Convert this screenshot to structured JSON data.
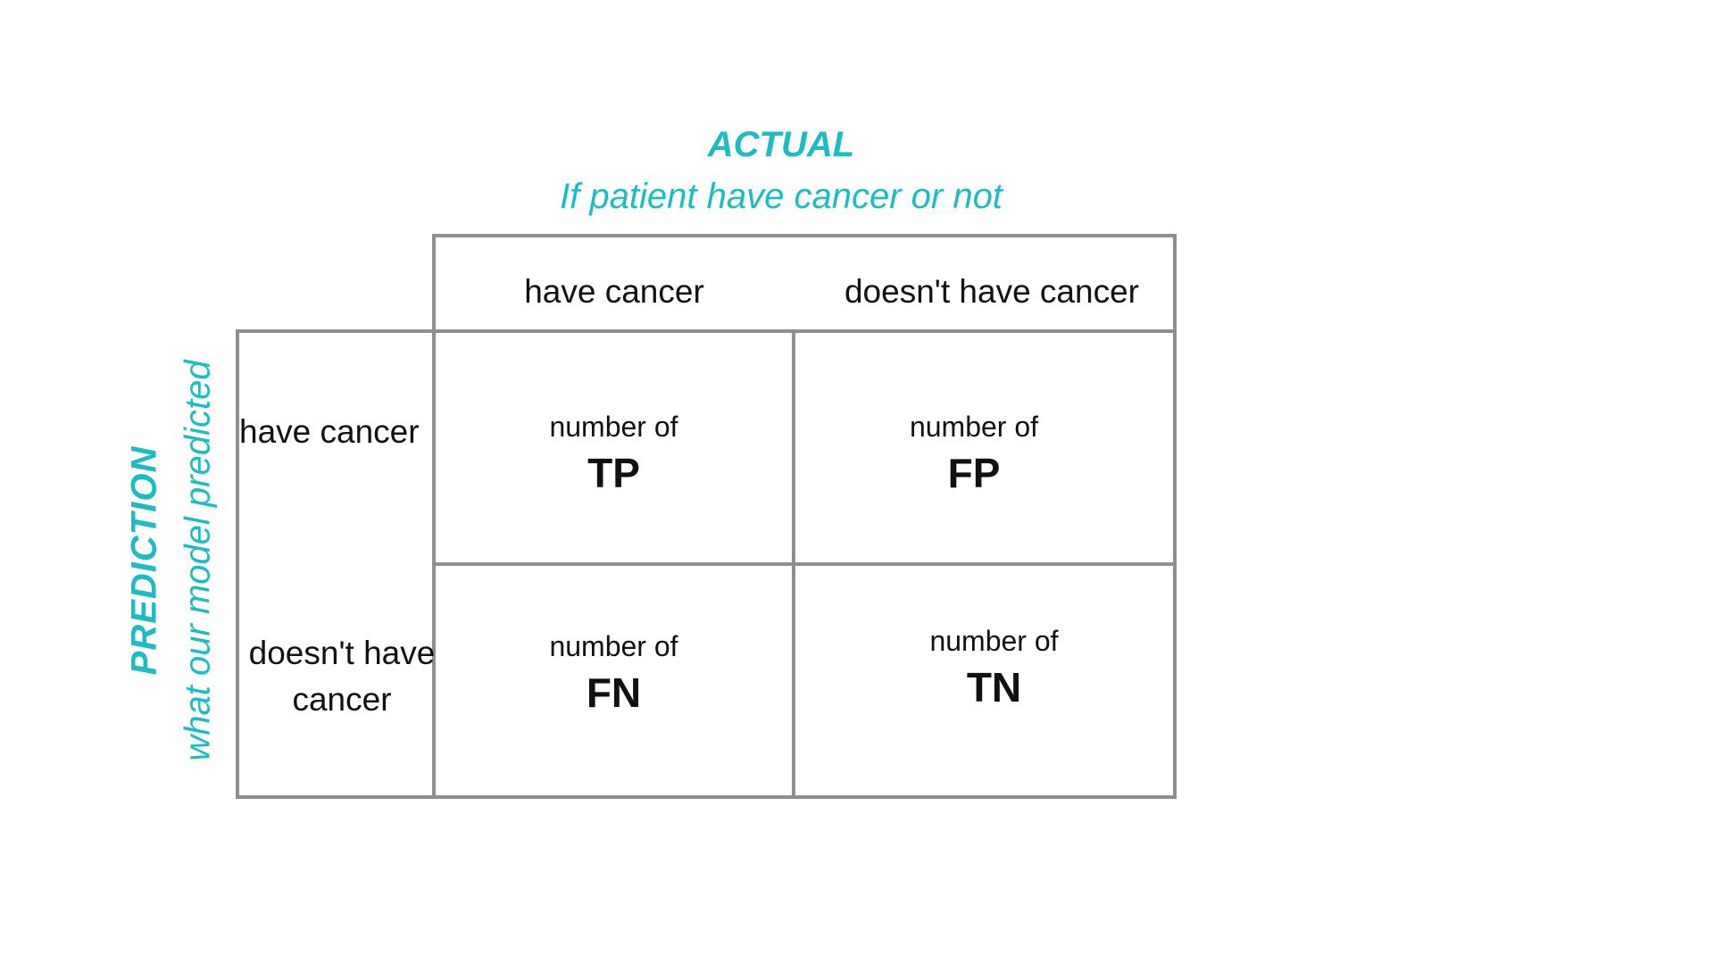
{
  "actual": {
    "title": "ACTUAL",
    "subtitle": "If patient have cancer or not"
  },
  "prediction": {
    "title": "PREDICTION",
    "subtitle": "what our model predicted"
  },
  "columns": [
    "have cancer",
    "doesn't have cancer"
  ],
  "rows": [
    "have cancer",
    "doesn't have cancer"
  ],
  "cells": [
    {
      "prefix": "number of",
      "label": "TP"
    },
    {
      "prefix": "number of",
      "label": "FP"
    },
    {
      "prefix": "number of",
      "label": "FN"
    },
    {
      "prefix": "number of",
      "label": "TN"
    }
  ],
  "colors": {
    "accent": "#1bbcc3",
    "grid": "#8f8f8f",
    "text": "#111111"
  }
}
